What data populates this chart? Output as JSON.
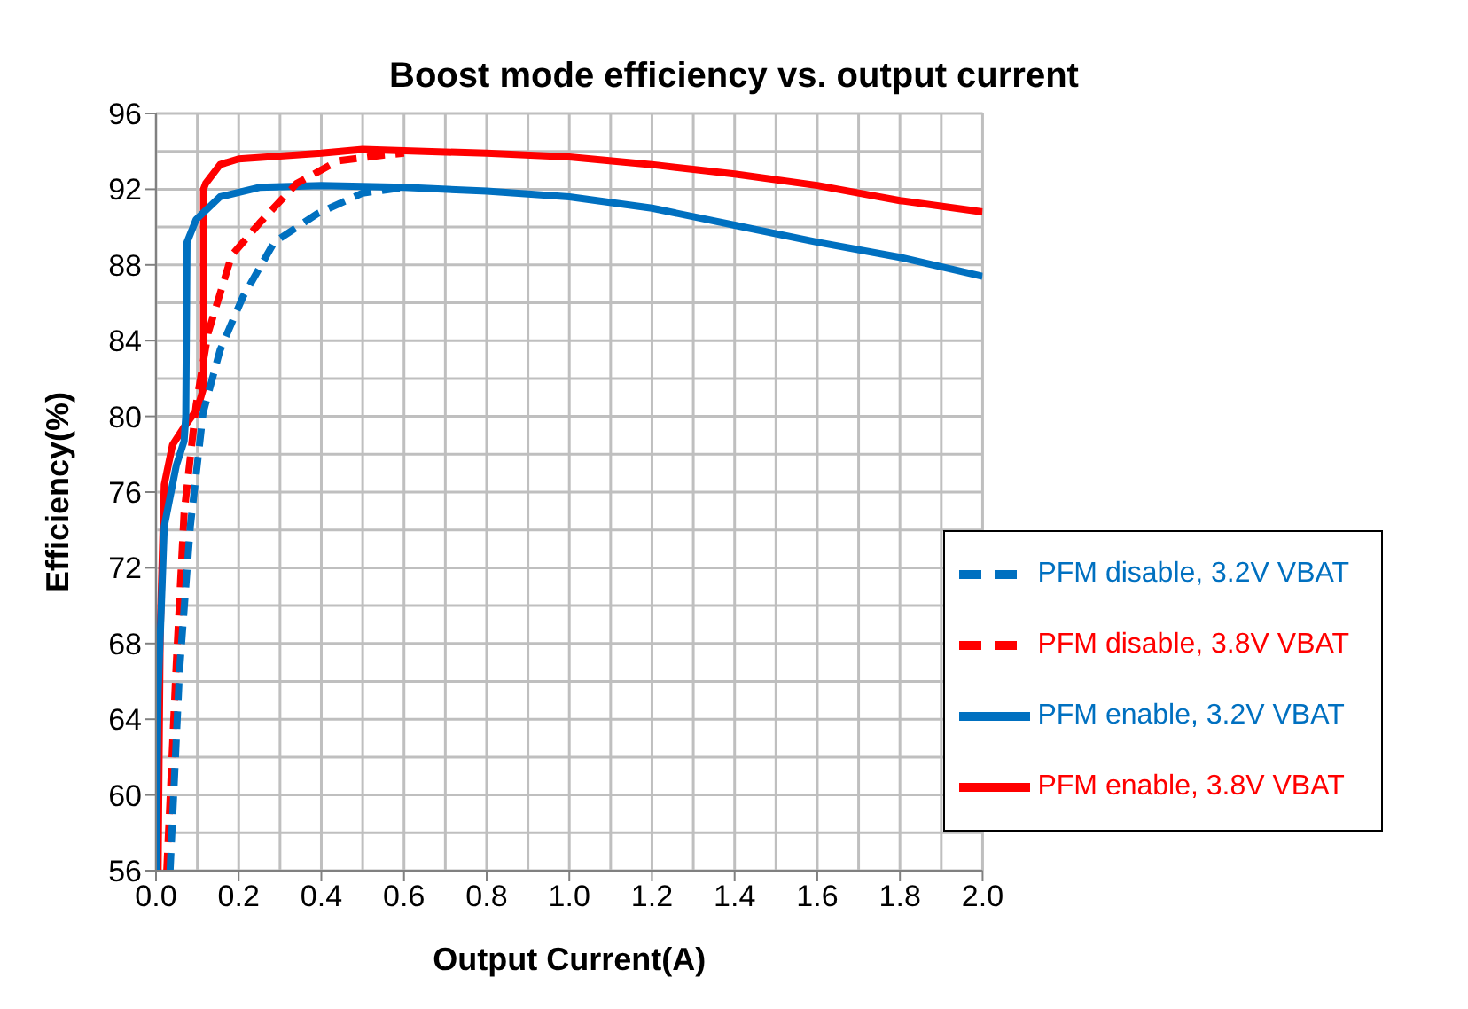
{
  "chart_data": {
    "type": "line",
    "title": "Boost mode efficiency vs. output current",
    "xlabel": "Output Current(A)",
    "ylabel": "Efficiency(%)",
    "xlim": [
      0,
      2
    ],
    "xticks": [
      {
        "value": 0,
        "label": "0.0"
      },
      0.2,
      0.4,
      0.6,
      0.8,
      {
        "value": 1,
        "label": "1.0"
      },
      1.2,
      1.4,
      1.6,
      1.8,
      {
        "value": 2,
        "label": "2.0"
      }
    ],
    "ylim": [
      56,
      96
    ],
    "yticks": [
      56,
      60,
      64,
      68,
      72,
      76,
      80,
      84,
      88,
      92,
      96
    ],
    "grid": true,
    "legend": "bottom right",
    "marker": "none",
    "series": [
      {
        "name": "PFM enable, 3.8V VBAT",
        "color": "#ff0000",
        "line_style": "solid",
        "x": [
          0.005,
          0.01,
          0.02,
          0.04,
          0.07,
          0.1,
          0.115,
          0.115,
          0.12,
          0.155,
          0.2,
          0.4,
          0.5,
          0.8,
          1.0,
          1.2,
          1.4,
          1.6,
          1.8,
          2.0
        ],
        "values": [
          56,
          68.5,
          76.4,
          78.5,
          79.5,
          80.4,
          81.5,
          92,
          92.3,
          93.3,
          93.6,
          93.9,
          94.1,
          93.9,
          93.7,
          93.3,
          92.8,
          92.2,
          91.4,
          90.8
        ]
      },
      {
        "name": "PFM enable, 3.2V VBAT",
        "color": "#0070c0",
        "line_style": "solid",
        "x": [
          0,
          0.005,
          0.02,
          0.049,
          0.068,
          0.072,
          0.075,
          0.097,
          0.155,
          0.25,
          0.4,
          0.6,
          0.8,
          1.0,
          1.2,
          1.4,
          1.6,
          1.8,
          2.0
        ],
        "values": [
          56,
          65.4,
          74.2,
          77.4,
          78.7,
          80,
          89.2,
          90.4,
          91.6,
          92.1,
          92.2,
          92.1,
          91.9,
          91.6,
          91,
          90.1,
          89.2,
          88.4,
          87.4
        ]
      },
      {
        "name": "PFM disable, 3.8V VBAT",
        "color": "#ff0000",
        "line_style": "dashed",
        "x": [
          0.026,
          0.049,
          0.068,
          0.097,
          0.126,
          0.183,
          0.25,
          0.34,
          0.44,
          0.55,
          0.6
        ],
        "values": [
          56,
          66.9,
          74.9,
          80.6,
          84.4,
          88.5,
          90.2,
          92.3,
          93.5,
          93.8,
          93.9
        ]
      },
      {
        "name": "PFM disable, 3.2V VBAT",
        "color": "#0070c0",
        "line_style": "dashed",
        "x": [
          0.034,
          0.057,
          0.083,
          0.114,
          0.155,
          0.21,
          0.286,
          0.39,
          0.5,
          0.6
        ],
        "values": [
          56,
          66.6,
          74.2,
          80.2,
          83.5,
          86.3,
          89.2,
          90.7,
          91.8,
          92.1
        ]
      }
    ]
  }
}
